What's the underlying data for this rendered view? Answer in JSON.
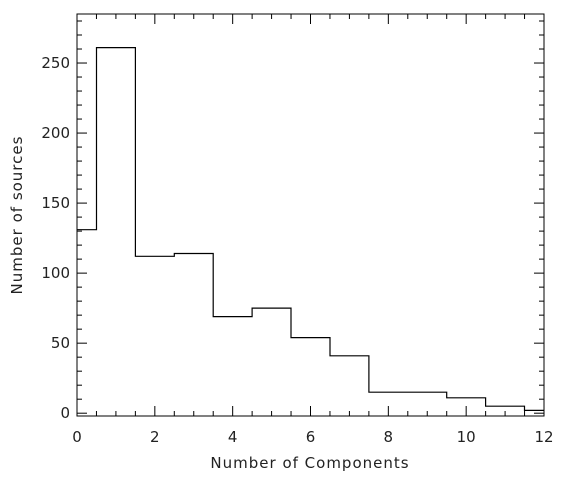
{
  "chart_data": {
    "type": "bar",
    "title": "",
    "xlabel": "Number of Components",
    "ylabel": "Number of sources",
    "xlim": [
      0,
      12
    ],
    "ylim": [
      -2,
      285
    ],
    "x_ticks": [
      0,
      2,
      4,
      6,
      8,
      10,
      12
    ],
    "y_ticks": [
      0,
      50,
      100,
      150,
      200,
      250
    ],
    "x_minor_step": 0.5,
    "y_minor_step": 10,
    "bin_width": 1,
    "grid": false,
    "line_color": "#000000",
    "bins": [
      {
        "center": 0,
        "value": 131
      },
      {
        "center": 1,
        "value": 261
      },
      {
        "center": 2,
        "value": 112
      },
      {
        "center": 3,
        "value": 114
      },
      {
        "center": 4,
        "value": 69
      },
      {
        "center": 5,
        "value": 75
      },
      {
        "center": 6,
        "value": 54
      },
      {
        "center": 7,
        "value": 41
      },
      {
        "center": 8,
        "value": 15
      },
      {
        "center": 9,
        "value": 15
      },
      {
        "center": 10,
        "value": 11
      },
      {
        "center": 11,
        "value": 5
      },
      {
        "center": 12,
        "value": 2
      }
    ]
  }
}
